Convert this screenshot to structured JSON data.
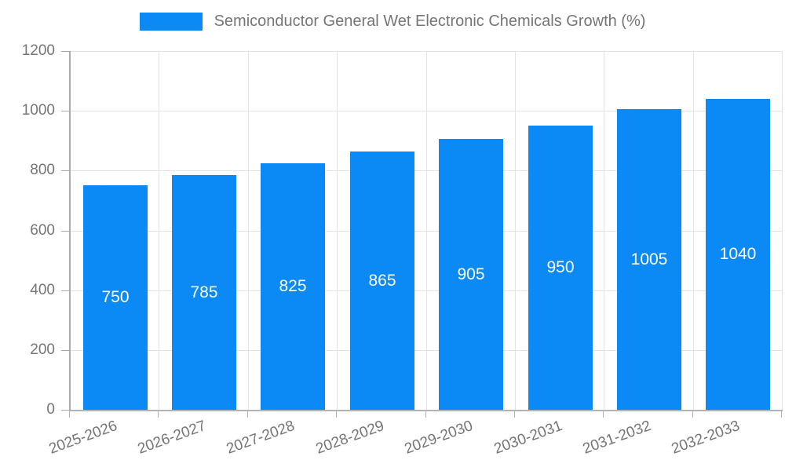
{
  "accent_color": "#0b8af5",
  "legend": {
    "swatch_color": "#0b8af5",
    "label": "Semiconductor General Wet Electronic Chemicals Growth (%)"
  },
  "chart_data": {
    "type": "bar",
    "title": "Semiconductor General Wet Electronic Chemicals Growth (%)",
    "categories": [
      "2025-2026",
      "2026-2027",
      "2027-2028",
      "2028-2029",
      "2029-2030",
      "2030-2031",
      "2031-2032",
      "2032-2033"
    ],
    "values": [
      750,
      785,
      825,
      865,
      905,
      950,
      1005,
      1040
    ],
    "value_labels": [
      "750",
      "785",
      "825",
      "865",
      "905",
      "950",
      "1005",
      "1040"
    ],
    "xlabel": "",
    "ylabel": "",
    "ylim": [
      0,
      1200
    ],
    "ytick_step": 200,
    "ytick_labels": [
      "0",
      "200",
      "400",
      "600",
      "800",
      "1000",
      "1200"
    ],
    "grid": true,
    "legend_position": "top-center",
    "bar_color": "#0b8af5",
    "bar_label_color": "#ffffff",
    "axis_text_color": "#757575",
    "gridline_color": "#e3e3e3",
    "axis_line_color": "#b0b0b0"
  }
}
